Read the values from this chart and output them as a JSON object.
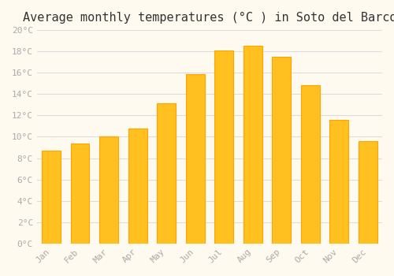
{
  "title": "Average monthly temperatures (°C ) in Soto del Barco",
  "months": [
    "Jan",
    "Feb",
    "Mar",
    "Apr",
    "May",
    "Jun",
    "Jul",
    "Aug",
    "Sep",
    "Oct",
    "Nov",
    "Dec"
  ],
  "temperatures": [
    8.7,
    9.4,
    10.0,
    10.8,
    13.1,
    15.9,
    18.1,
    18.5,
    17.5,
    14.8,
    11.6,
    9.6
  ],
  "bar_color_face": "#FFC020",
  "bar_color_edge": "#FFA500",
  "background_color": "#FFFAEF",
  "grid_color": "#DDDDDD",
  "title_fontsize": 11,
  "tick_label_color": "#AAAAAA",
  "axis_label_color": "#AAAAAA",
  "ylim": [
    0,
    20
  ],
  "ytick_step": 2,
  "font_family": "monospace"
}
